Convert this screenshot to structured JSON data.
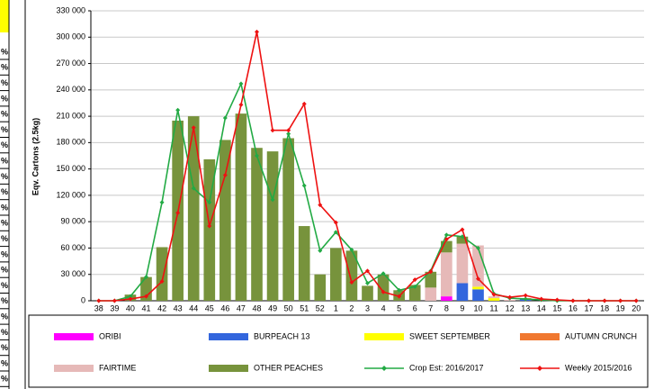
{
  "sheet_cells": [
    "%",
    "%",
    "%",
    "%",
    "%",
    "%",
    "%",
    "%",
    "%",
    "%",
    "%",
    "%",
    "%",
    "%",
    "%",
    "%",
    "%",
    "%",
    "%",
    "%",
    "%",
    "%"
  ],
  "chart_data": {
    "type": "bar",
    "stacked": true,
    "y_label": "Eqv. Cartons (2.5kg)",
    "categories": [
      "38",
      "39",
      "40",
      "41",
      "42",
      "43",
      "44",
      "45",
      "46",
      "47",
      "48",
      "49",
      "50",
      "51",
      "52",
      "1",
      "2",
      "3",
      "4",
      "5",
      "6",
      "7",
      "8",
      "9",
      "10",
      "11",
      "12",
      "13",
      "14",
      "15",
      "16",
      "17",
      "18",
      "19",
      "20"
    ],
    "ylim": [
      0,
      330000
    ],
    "yticks": [
      0,
      {
        "value": 30000,
        "label": "30 000"
      },
      {
        "value": 60000,
        "label": "60 000"
      },
      {
        "value": 90000,
        "label": "90 000"
      },
      {
        "value": 120000,
        "label": "120 000"
      },
      {
        "value": 150000,
        "label": "150 000"
      },
      {
        "value": 180000,
        "label": "180 000"
      },
      {
        "value": 210000,
        "label": "210 000"
      },
      {
        "value": 240000,
        "label": "240 000"
      },
      {
        "value": 270000,
        "label": "270 000"
      },
      {
        "value": 300000,
        "label": "300 000"
      },
      {
        "value": 330000,
        "label": "330 000"
      }
    ],
    "grid": true,
    "series": [
      {
        "name": "ORIBI",
        "color": "#ff00ff",
        "type": "bar",
        "values": [
          0,
          0,
          0,
          0,
          0,
          0,
          0,
          0,
          0,
          0,
          0,
          0,
          0,
          0,
          0,
          0,
          0,
          0,
          0,
          0,
          0,
          0,
          5000,
          0,
          0,
          0,
          0,
          0,
          0,
          0,
          0,
          0,
          0,
          0,
          0
        ]
      },
      {
        "name": "BURPEACH 13",
        "color": "#3366dd",
        "type": "bar",
        "values": [
          0,
          0,
          0,
          0,
          0,
          0,
          0,
          0,
          0,
          0,
          0,
          0,
          0,
          0,
          0,
          0,
          0,
          0,
          0,
          0,
          0,
          0,
          0,
          20000,
          13000,
          0,
          0,
          2000,
          0,
          0,
          0,
          0,
          0,
          0,
          0
        ]
      },
      {
        "name": "SWEET SEPTEMBER",
        "color": "#ffff00",
        "type": "bar",
        "values": [
          0,
          0,
          0,
          0,
          0,
          0,
          0,
          0,
          0,
          0,
          0,
          0,
          0,
          0,
          0,
          0,
          0,
          0,
          0,
          0,
          0,
          0,
          0,
          0,
          3000,
          3000,
          0,
          0,
          0,
          0,
          0,
          0,
          0,
          0,
          0
        ]
      },
      {
        "name": "AUTUMN CRUNCH",
        "color": "#f07830",
        "type": "bar",
        "values": [
          0,
          0,
          0,
          0,
          0,
          0,
          0,
          0,
          0,
          0,
          0,
          0,
          0,
          0,
          0,
          0,
          0,
          0,
          0,
          0,
          0,
          0,
          0,
          0,
          0,
          0,
          0,
          1000,
          0,
          0,
          0,
          0,
          0,
          0,
          0
        ]
      },
      {
        "name": "FAIRTIME",
        "color": "#e6b9b8",
        "type": "bar",
        "values": [
          0,
          0,
          0,
          0,
          0,
          0,
          0,
          0,
          0,
          0,
          0,
          0,
          0,
          0,
          0,
          0,
          0,
          0,
          0,
          0,
          0,
          15000,
          50000,
          45000,
          47000,
          2000,
          1000,
          0,
          0,
          0,
          0,
          0,
          0,
          0,
          0
        ]
      },
      {
        "name": "OTHER PEACHES",
        "color": "#77933c",
        "type": "bar",
        "values": [
          0,
          0,
          7000,
          27000,
          61000,
          205000,
          210000,
          161000,
          183000,
          213000,
          174000,
          170000,
          185000,
          85000,
          30000,
          60000,
          57000,
          17000,
          30000,
          12000,
          18000,
          18000,
          13000,
          8000,
          0,
          0,
          0,
          0,
          0,
          0,
          0,
          0,
          0,
          0,
          0
        ]
      },
      {
        "name": "Crop Est: 2016/2017",
        "color": "#22aa44",
        "type": "line",
        "values": [
          0,
          0,
          5000,
          27000,
          112000,
          217000,
          128000,
          112000,
          208000,
          247000,
          165000,
          115000,
          190000,
          131000,
          57000,
          78000,
          58000,
          20000,
          31000,
          12000,
          16000,
          34000,
          75000,
          73000,
          60000,
          8000,
          3000,
          2000,
          1000,
          0,
          0,
          0,
          0,
          0,
          0
        ]
      },
      {
        "name": "Weekly 2015/2016",
        "color": "#ee1111",
        "type": "line",
        "values": [
          0,
          0,
          2000,
          5000,
          22000,
          100000,
          197000,
          85000,
          143000,
          223000,
          306000,
          194000,
          194000,
          224000,
          109000,
          89000,
          21000,
          34000,
          10000,
          5000,
          24000,
          33000,
          70000,
          81000,
          25000,
          7000,
          4000,
          6000,
          2000,
          1000,
          0,
          0,
          0,
          0,
          0
        ]
      }
    ]
  }
}
